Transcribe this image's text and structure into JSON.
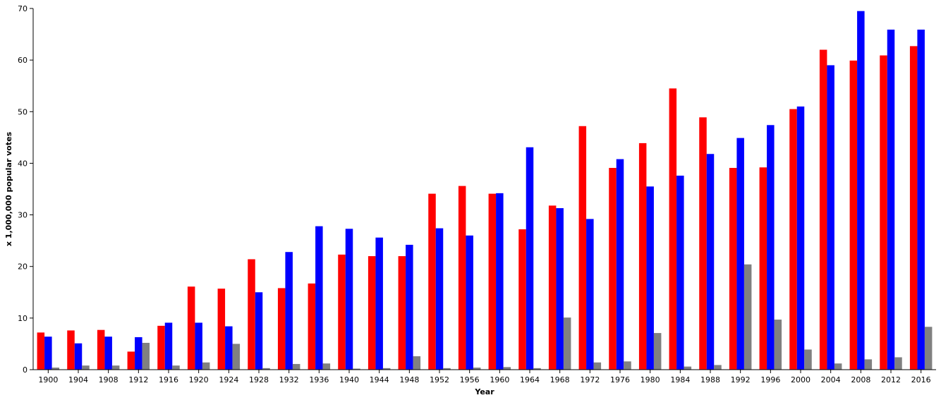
{
  "chart_data": {
    "type": "bar",
    "xlabel": "Year",
    "ylabel": "x 1,000,000 popular votes",
    "ylim": [
      0,
      70
    ],
    "yticks": [
      0,
      10,
      20,
      30,
      40,
      50,
      60,
      70
    ],
    "grid": false,
    "legend": "none",
    "categories": [
      "1900",
      "1904",
      "1908",
      "1912",
      "1916",
      "1920",
      "1924",
      "1928",
      "1932",
      "1936",
      "1940",
      "1944",
      "1948",
      "1952",
      "1956",
      "1960",
      "1964",
      "1968",
      "1972",
      "1976",
      "1980",
      "1984",
      "1988",
      "1992",
      "1996",
      "2000",
      "2004",
      "2008",
      "2012",
      "2016"
    ],
    "series": [
      {
        "color": "#ff0000",
        "values": [
          7.2,
          7.6,
          7.7,
          3.5,
          8.5,
          16.1,
          15.7,
          21.4,
          15.8,
          16.7,
          22.3,
          22.0,
          22.0,
          34.1,
          35.6,
          34.1,
          27.2,
          31.8,
          47.2,
          39.1,
          43.9,
          54.5,
          48.9,
          39.1,
          39.2,
          50.5,
          62.0,
          59.9,
          60.9,
          62.7
        ]
      },
      {
        "color": "#0000ff",
        "values": [
          6.4,
          5.1,
          6.4,
          6.3,
          9.1,
          9.1,
          8.4,
          15.0,
          22.8,
          27.8,
          27.3,
          25.6,
          24.2,
          27.4,
          26.0,
          34.2,
          43.1,
          31.3,
          29.2,
          40.8,
          35.5,
          37.6,
          41.8,
          44.9,
          47.4,
          51.0,
          59.0,
          69.5,
          65.9,
          65.9
        ]
      },
      {
        "color": "#808080",
        "values": [
          0.4,
          0.8,
          0.8,
          5.2,
          0.8,
          1.4,
          5.0,
          0.3,
          1.1,
          1.2,
          0.2,
          0.3,
          2.6,
          0.3,
          0.4,
          0.5,
          0.3,
          10.1,
          1.4,
          1.6,
          7.1,
          0.6,
          0.9,
          20.4,
          9.7,
          3.9,
          1.2,
          2.0,
          2.4,
          8.3
        ]
      }
    ]
  }
}
